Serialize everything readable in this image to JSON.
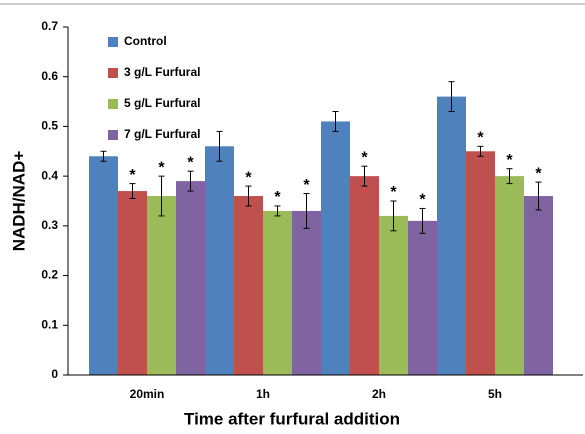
{
  "chart_data": {
    "type": "grouped_bar",
    "x_label": "Time after furfural addition",
    "y_label": "NADH/NAD+",
    "categories": [
      "20min",
      "1h",
      "2h",
      "5h"
    ],
    "series": [
      {
        "name": "Control",
        "color": "#4f81bd",
        "values": [
          0.44,
          0.46,
          0.51,
          0.56
        ],
        "errors": [
          0.01,
          0.03,
          0.02,
          0.03
        ],
        "marks": [
          null,
          null,
          null,
          null
        ]
      },
      {
        "name": "3 g/L Furfural",
        "color": "#c0504d",
        "values": [
          0.37,
          0.36,
          0.4,
          0.45
        ],
        "errors": [
          0.015,
          0.02,
          0.02,
          0.01
        ],
        "marks": [
          "*",
          "*",
          "*",
          "*"
        ]
      },
      {
        "name": "5 g/L Furfural",
        "color": "#9bbb59",
        "values": [
          0.36,
          0.33,
          0.32,
          0.4
        ],
        "errors": [
          0.04,
          0.01,
          0.03,
          0.015
        ],
        "marks": [
          "*",
          "*",
          "*",
          "*"
        ]
      },
      {
        "name": "7 g/L Furfural",
        "color": "#8064a2",
        "values": [
          0.39,
          0.33,
          0.31,
          0.36
        ],
        "errors": [
          0.02,
          0.035,
          0.025,
          0.028
        ],
        "marks": [
          "*",
          "*",
          "*",
          "*"
        ]
      }
    ],
    "ylim": [
      0,
      0.7
    ],
    "yticks": [
      0,
      0.1,
      0.2,
      0.3,
      0.4,
      0.5,
      0.6,
      0.7
    ],
    "legend": "top-left"
  }
}
